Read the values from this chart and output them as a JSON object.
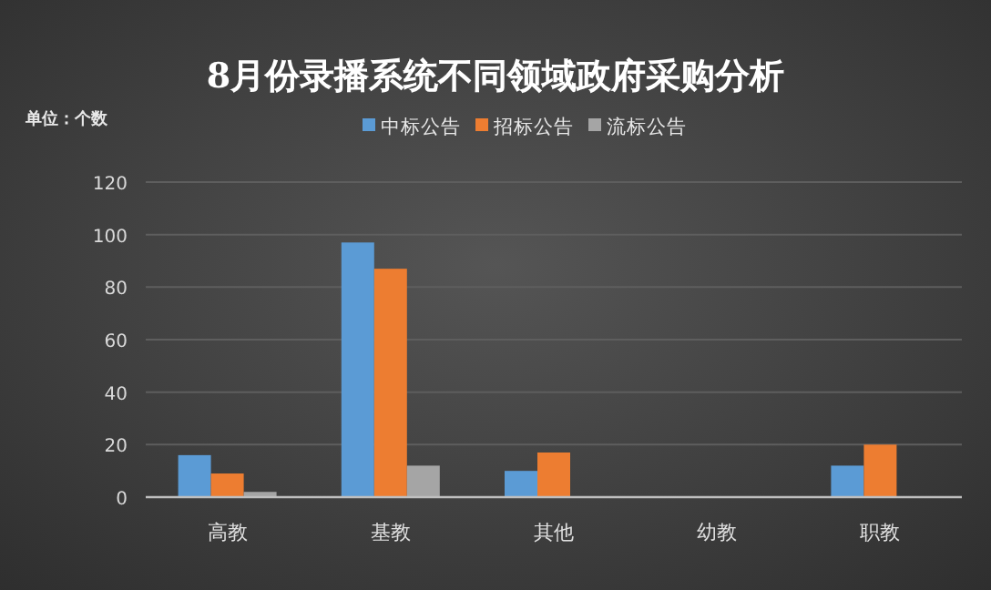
{
  "chart_data": {
    "type": "bar",
    "title": "8月份录播系统不同领域政府采购分析",
    "annotations": [
      "单位：个数"
    ],
    "categories": [
      "高教",
      "基教",
      "其他",
      "幼教",
      "职教"
    ],
    "series": [
      {
        "name": "中标公告",
        "color": "#5b9bd5",
        "values": [
          16,
          97,
          10,
          0,
          12
        ]
      },
      {
        "name": "招标公告",
        "color": "#ed7d31",
        "values": [
          9,
          87,
          17,
          0,
          20
        ]
      },
      {
        "name": "流标公告",
        "color": "#a5a5a5",
        "values": [
          2,
          12,
          0,
          0,
          0
        ]
      }
    ],
    "ylim": [
      0,
      120
    ],
    "yticks": [
      0,
      20,
      40,
      60,
      80,
      100,
      120
    ],
    "grid": "y",
    "legend": "top"
  }
}
